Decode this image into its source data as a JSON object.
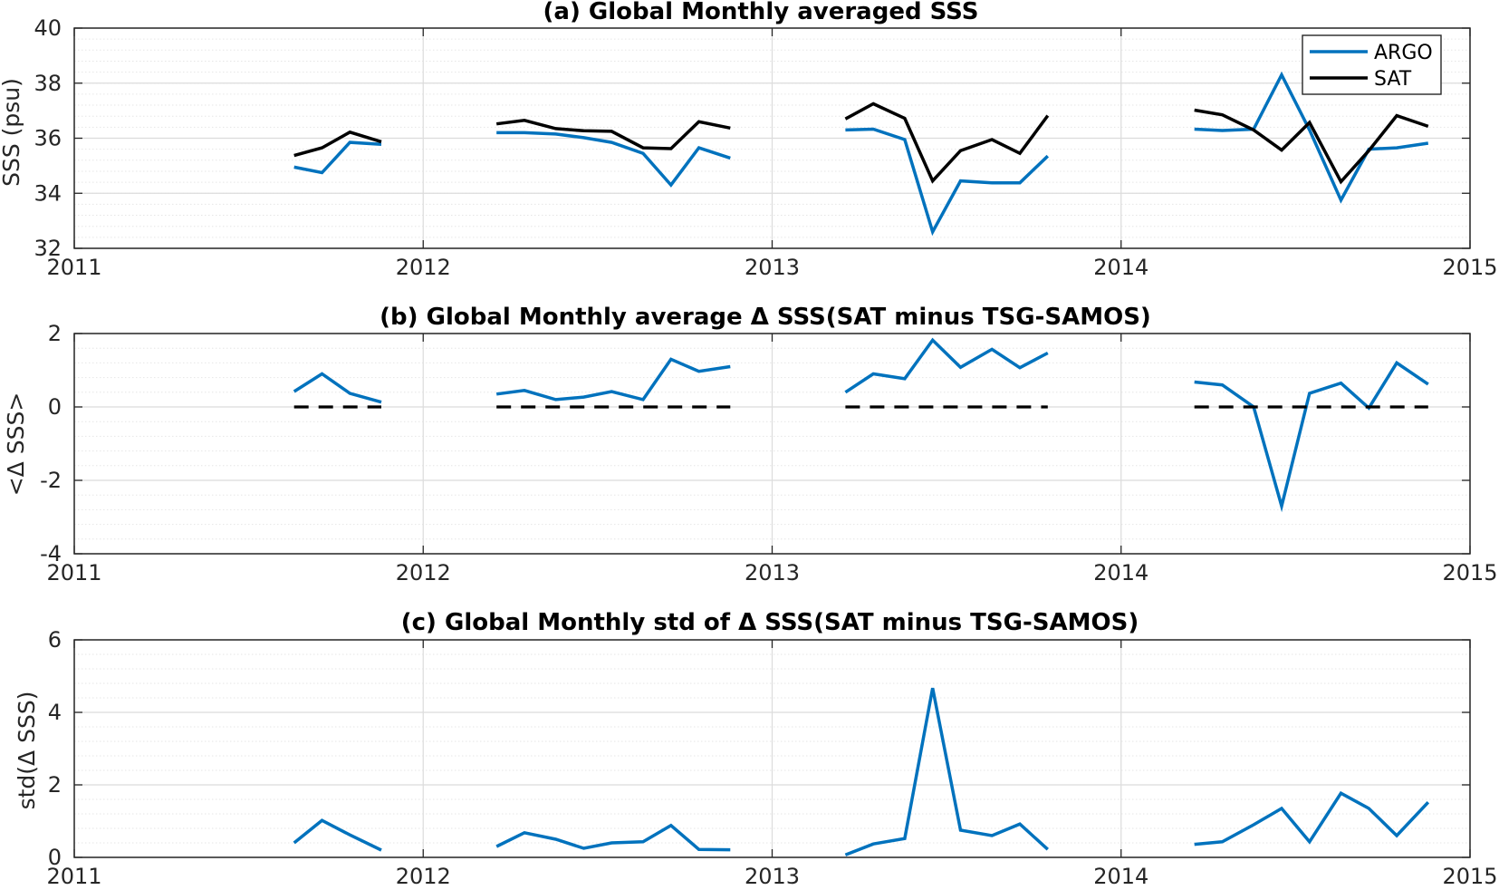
{
  "colors": {
    "argo": "#0072BD",
    "sat": "#000000",
    "zero_line": "#000000",
    "grid_major": "#dcdcdc",
    "grid_minor": "#e6e6e6",
    "axes": "#262626"
  },
  "chart_data": [
    {
      "id": "a",
      "type": "line",
      "title": "(a) Global Monthly averaged SSS",
      "xlabel": "",
      "ylabel": "SSS (psu)",
      "xlim": [
        2011,
        2015
      ],
      "ylim": [
        32,
        40
      ],
      "xticks": [
        2011,
        2012,
        2013,
        2014,
        2015
      ],
      "xtick_labels": [
        "2011",
        "2012",
        "2013",
        "2014",
        "2015"
      ],
      "yticks": [
        32,
        34,
        36,
        38,
        40
      ],
      "ytick_labels": [
        "32",
        "34",
        "36",
        "38",
        "40"
      ],
      "grid": true,
      "minor_grid": true,
      "legend": {
        "position": "top-right",
        "entries": [
          "ARGO",
          "SAT"
        ]
      },
      "series": [
        {
          "name": "ARGO",
          "color_key": "argo",
          "segments": [
            [
              [
                2011.63,
                34.95
              ],
              [
                2011.71,
                34.75
              ],
              [
                2011.79,
                35.85
              ],
              [
                2011.88,
                35.78
              ]
            ],
            [
              [
                2012.21,
                36.2
              ],
              [
                2012.29,
                36.2
              ],
              [
                2012.38,
                36.15
              ],
              [
                2012.46,
                36.02
              ],
              [
                2012.54,
                35.85
              ],
              [
                2012.63,
                35.45
              ],
              [
                2012.71,
                34.3
              ],
              [
                2012.79,
                35.65
              ],
              [
                2012.88,
                35.28
              ]
            ],
            [
              [
                2013.21,
                36.3
              ],
              [
                2013.29,
                36.33
              ],
              [
                2013.38,
                35.95
              ],
              [
                2013.46,
                32.6
              ],
              [
                2013.54,
                34.45
              ],
              [
                2013.63,
                34.38
              ],
              [
                2013.71,
                34.38
              ],
              [
                2013.79,
                35.35
              ]
            ],
            [
              [
                2014.21,
                36.33
              ],
              [
                2014.29,
                36.28
              ],
              [
                2014.38,
                36.33
              ],
              [
                2014.46,
                38.3
              ],
              [
                2014.54,
                36.3
              ],
              [
                2014.63,
                33.75
              ],
              [
                2014.71,
                35.6
              ],
              [
                2014.79,
                35.65
              ],
              [
                2014.88,
                35.82
              ]
            ]
          ]
        },
        {
          "name": "SAT",
          "color_key": "sat",
          "segments": [
            [
              [
                2011.63,
                35.37
              ],
              [
                2011.71,
                35.65
              ],
              [
                2011.79,
                36.22
              ],
              [
                2011.88,
                35.87
              ]
            ],
            [
              [
                2012.21,
                36.52
              ],
              [
                2012.29,
                36.65
              ],
              [
                2012.38,
                36.35
              ],
              [
                2012.46,
                36.27
              ],
              [
                2012.54,
                36.25
              ],
              [
                2012.63,
                35.65
              ],
              [
                2012.71,
                35.62
              ],
              [
                2012.79,
                36.6
              ],
              [
                2012.88,
                36.37
              ]
            ],
            [
              [
                2013.21,
                36.7
              ],
              [
                2013.29,
                37.25
              ],
              [
                2013.38,
                36.72
              ],
              [
                2013.46,
                34.45
              ],
              [
                2013.54,
                35.55
              ],
              [
                2013.63,
                35.95
              ],
              [
                2013.71,
                35.45
              ],
              [
                2013.79,
                36.82
              ]
            ],
            [
              [
                2014.21,
                37.02
              ],
              [
                2014.29,
                36.85
              ],
              [
                2014.38,
                36.3
              ],
              [
                2014.46,
                35.57
              ],
              [
                2014.54,
                36.57
              ],
              [
                2014.63,
                34.42
              ],
              [
                2014.71,
                35.55
              ],
              [
                2014.79,
                36.82
              ],
              [
                2014.88,
                36.43
              ]
            ]
          ]
        }
      ]
    },
    {
      "id": "b",
      "type": "line",
      "title": "(b) Global Monthly average Δ SSS(SAT minus TSG-SAMOS)",
      "xlabel": "",
      "ylabel": "<Δ SSS>",
      "xlim": [
        2011,
        2015
      ],
      "ylim": [
        -4,
        2
      ],
      "xticks": [
        2011,
        2012,
        2013,
        2014,
        2015
      ],
      "xtick_labels": [
        "2011",
        "2012",
        "2013",
        "2014",
        "2015"
      ],
      "yticks": [
        -4,
        -2,
        0,
        2
      ],
      "ytick_labels": [
        "-4",
        "-2",
        "0",
        "2"
      ],
      "grid": true,
      "minor_grid": true,
      "series": [
        {
          "color_key": "argo",
          "segments": [
            [
              [
                2011.63,
                0.42
              ],
              [
                2011.71,
                0.9
              ],
              [
                2011.79,
                0.37
              ],
              [
                2011.88,
                0.13
              ]
            ],
            [
              [
                2012.21,
                0.35
              ],
              [
                2012.29,
                0.45
              ],
              [
                2012.38,
                0.2
              ],
              [
                2012.46,
                0.27
              ],
              [
                2012.54,
                0.42
              ],
              [
                2012.63,
                0.2
              ],
              [
                2012.71,
                1.3
              ],
              [
                2012.79,
                0.97
              ],
              [
                2012.88,
                1.1
              ]
            ],
            [
              [
                2013.21,
                0.4
              ],
              [
                2013.29,
                0.9
              ],
              [
                2013.38,
                0.77
              ],
              [
                2013.46,
                1.82
              ],
              [
                2013.54,
                1.08
              ],
              [
                2013.63,
                1.57
              ],
              [
                2013.71,
                1.07
              ],
              [
                2013.79,
                1.47
              ]
            ],
            [
              [
                2014.21,
                0.68
              ],
              [
                2014.29,
                0.6
              ],
              [
                2014.38,
                0.0
              ],
              [
                2014.46,
                -2.7
              ],
              [
                2014.54,
                0.37
              ],
              [
                2014.63,
                0.65
              ],
              [
                2014.71,
                -0.03
              ],
              [
                2014.79,
                1.2
              ],
              [
                2014.88,
                0.62
              ]
            ]
          ]
        },
        {
          "color_key": "zero_line",
          "dashed": true,
          "segments": [
            [
              [
                2011.63,
                0
              ],
              [
                2011.88,
                0
              ]
            ],
            [
              [
                2012.21,
                0
              ],
              [
                2012.88,
                0
              ]
            ],
            [
              [
                2013.21,
                0
              ],
              [
                2013.79,
                0
              ]
            ],
            [
              [
                2014.21,
                0
              ],
              [
                2014.88,
                0
              ]
            ]
          ]
        }
      ]
    },
    {
      "id": "c",
      "type": "line",
      "title": "(c) Global Monthly std of Δ SSS(SAT minus TSG-SAMOS)",
      "xlabel": "",
      "ylabel": "std(Δ SSS)",
      "xlim": [
        2011,
        2015
      ],
      "ylim": [
        0,
        6
      ],
      "xticks": [
        2011,
        2012,
        2013,
        2014,
        2015
      ],
      "xtick_labels": [
        "2011",
        "2012",
        "2013",
        "2014",
        "2015"
      ],
      "yticks": [
        0,
        2,
        4,
        6
      ],
      "ytick_labels": [
        "0",
        "2",
        "4",
        "6"
      ],
      "grid": true,
      "minor_grid": true,
      "series": [
        {
          "color_key": "argo",
          "segments": [
            [
              [
                2011.63,
                0.4
              ],
              [
                2011.71,
                1.02
              ],
              [
                2011.79,
                0.62
              ],
              [
                2011.88,
                0.2
              ]
            ],
            [
              [
                2012.21,
                0.3
              ],
              [
                2012.29,
                0.68
              ],
              [
                2012.38,
                0.5
              ],
              [
                2012.46,
                0.25
              ],
              [
                2012.54,
                0.4
              ],
              [
                2012.63,
                0.43
              ],
              [
                2012.71,
                0.88
              ],
              [
                2012.79,
                0.22
              ],
              [
                2012.88,
                0.21
              ]
            ],
            [
              [
                2013.21,
                0.07
              ],
              [
                2013.29,
                0.37
              ],
              [
                2013.38,
                0.52
              ],
              [
                2013.46,
                4.67
              ],
              [
                2013.54,
                0.75
              ],
              [
                2013.63,
                0.6
              ],
              [
                2013.71,
                0.92
              ],
              [
                2013.79,
                0.22
              ]
            ],
            [
              [
                2014.21,
                0.36
              ],
              [
                2014.29,
                0.43
              ],
              [
                2014.38,
                0.9
              ],
              [
                2014.46,
                1.35
              ],
              [
                2014.54,
                0.43
              ],
              [
                2014.63,
                1.77
              ],
              [
                2014.71,
                1.35
              ],
              [
                2014.79,
                0.6
              ],
              [
                2014.88,
                1.52
              ]
            ]
          ]
        }
      ]
    }
  ]
}
